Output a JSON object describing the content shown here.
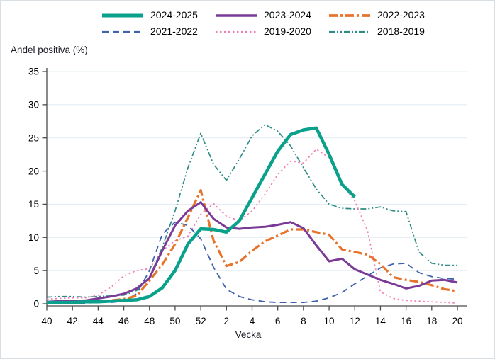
{
  "chart_data": {
    "type": "line",
    "title": "",
    "ylabel": "Andel positiva (%)",
    "xlabel": "Vecka",
    "ylim": [
      0,
      35
    ],
    "y_ticks": [
      0,
      5,
      10,
      15,
      20,
      25,
      30,
      35
    ],
    "grid": "horizontal-light",
    "legend_position": "top",
    "x_categories": [
      "40",
      "41",
      "42",
      "43",
      "44",
      "45",
      "46",
      "47",
      "48",
      "49",
      "50",
      "51",
      "52",
      "1",
      "2",
      "3",
      "4",
      "5",
      "6",
      "7",
      "8",
      "9",
      "10",
      "11",
      "12",
      "13",
      "14",
      "15",
      "16",
      "17",
      "18",
      "19",
      "20"
    ],
    "x_tick_labels": [
      "40",
      "42",
      "44",
      "46",
      "48",
      "50",
      "52",
      "2",
      "4",
      "6",
      "8",
      "10",
      "12",
      "14",
      "16",
      "18",
      "20"
    ],
    "x_tick_indices": [
      0,
      2,
      4,
      6,
      8,
      10,
      12,
      14,
      16,
      18,
      20,
      22,
      24,
      26,
      28,
      30,
      32
    ],
    "series": [
      {
        "name": "2024-2025",
        "color": "#0aa18c",
        "dash": "",
        "width": 4.5,
        "values": [
          0.2,
          0.2,
          0.2,
          0.3,
          0.3,
          0.4,
          0.5,
          0.6,
          1.1,
          2.4,
          5.0,
          9.0,
          11.3,
          11.2,
          10.8,
          12.5,
          16.0,
          19.5,
          23.0,
          25.5,
          26.2,
          26.5,
          22.5,
          18.0,
          16.1,
          null,
          null,
          null,
          null,
          null,
          null,
          null,
          null
        ]
      },
      {
        "name": "2023-2024",
        "color": "#7a3a96",
        "dash": "",
        "width": 3,
        "values": [
          0.3,
          0.4,
          0.4,
          0.5,
          0.8,
          1.1,
          1.5,
          2.3,
          3.9,
          8.0,
          11.8,
          14.0,
          15.3,
          12.8,
          11.5,
          11.3,
          11.5,
          11.6,
          11.9,
          12.3,
          11.4,
          8.8,
          6.4,
          6.8,
          5.2,
          4.4,
          3.6,
          3.0,
          2.3,
          2.7,
          3.5,
          3.6,
          3.2
        ]
      },
      {
        "name": "2022-2023",
        "color": "#e8742c",
        "dash": "12,4,3,4",
        "width": 3.2,
        "values": [
          0.2,
          0.2,
          0.3,
          0.3,
          0.4,
          0.5,
          0.7,
          1.2,
          3.5,
          5.9,
          9.0,
          13.0,
          17.1,
          9.5,
          5.7,
          6.3,
          8.0,
          9.4,
          10.3,
          11.2,
          11.2,
          10.8,
          10.4,
          8.2,
          7.8,
          7.4,
          6.0,
          4.0,
          3.6,
          3.3,
          2.8,
          2.2,
          1.9
        ]
      },
      {
        "name": "2021-2022",
        "color": "#3f62ad",
        "dash": "9,6",
        "width": 1.8,
        "values": [
          0.1,
          0.1,
          0.1,
          0.1,
          0.2,
          0.2,
          0.4,
          1.5,
          5.0,
          10.5,
          12.3,
          11.8,
          9.8,
          5.5,
          2.2,
          1.1,
          0.6,
          0.3,
          0.2,
          0.2,
          0.2,
          0.4,
          0.9,
          1.7,
          3.0,
          4.2,
          5.4,
          6.0,
          6.1,
          4.7,
          4.1,
          3.8,
          3.7
        ]
      },
      {
        "name": "2019-2020",
        "color": "#f17eb5",
        "dash": "2.5,3.5",
        "width": 1.7,
        "values": [
          0.7,
          0.8,
          0.9,
          0.9,
          1.3,
          2.5,
          4.2,
          5.0,
          5.3,
          8.0,
          9.5,
          10.2,
          13.5,
          15.1,
          13.2,
          12.5,
          14.0,
          16.5,
          19.5,
          21.5,
          21.2,
          23.3,
          22.0,
          18.0,
          15.5,
          11.0,
          1.8,
          0.8,
          0.5,
          0.4,
          0.3,
          0.2,
          0.1
        ]
      },
      {
        "name": "2018-2019",
        "color": "#2e8c85",
        "dash": "8,3,2,3,2,3",
        "width": 1.7,
        "values": [
          1.0,
          1.1,
          1.1,
          1.0,
          1.1,
          1.2,
          1.3,
          2.0,
          4.0,
          8.5,
          14.0,
          20.5,
          25.7,
          21.0,
          18.6,
          21.8,
          25.3,
          27.0,
          26.0,
          23.8,
          20.5,
          17.3,
          15.0,
          14.4,
          14.3,
          14.3,
          14.6,
          14.0,
          13.9,
          7.8,
          6.1,
          5.8,
          5.8
        ]
      }
    ]
  },
  "axes": {
    "y_title": "Andel positiva (%)",
    "x_title": "Vecka"
  },
  "colors": {
    "grid": "#e3edf2",
    "axis": "#4a4a4a",
    "tick_label": "#000000"
  }
}
